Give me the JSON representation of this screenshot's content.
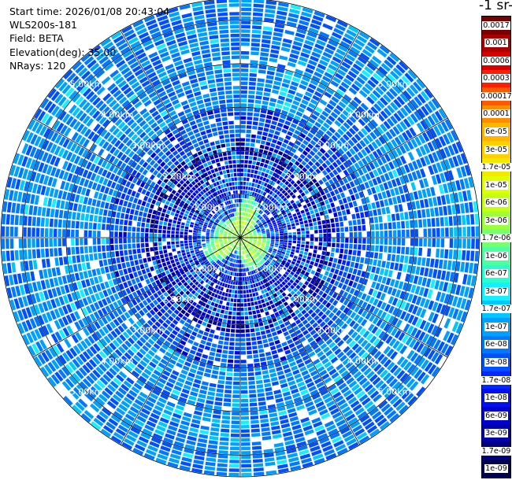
{
  "header": {
    "start_time": "Start time: 2026/01/08 20:43:04",
    "instrument": "WLS200s-181",
    "field": "Field: BETA",
    "elevation": "Elevation(deg): 35.00",
    "nrays": "NRays: 120"
  },
  "colorbar": {
    "title_fragment": "-1 sr-",
    "labels": [
      "0.0017",
      "0.001",
      "0.0006",
      "0.0003",
      "0.00017",
      "0.0001",
      "6e-05",
      "3e-05",
      "1.7e-05",
      "1e-05",
      "6e-06",
      "3e-06",
      "1.7e-06",
      "1e-06",
      "6e-07",
      "3e-07",
      "1.7e-07",
      "1e-07",
      "6e-08",
      "3e-08",
      "1.7e-08",
      "1e-08",
      "6e-09",
      "3e-09",
      "1.7e-09",
      "1e-09"
    ],
    "colors": [
      "#7a0000",
      "#a80000",
      "#d80000",
      "#ff1e00",
      "#ff5a00",
      "#ff8c00",
      "#ffb400",
      "#ffd000",
      "#f2e800",
      "#e0ff00",
      "#c4ff14",
      "#9cff3c",
      "#78ff70",
      "#4cffa0",
      "#28ffd0",
      "#14f0ff",
      "#00c8ff",
      "#00a0ff",
      "#0078ff",
      "#0050ff",
      "#0028ff",
      "#0010f0",
      "#0000d0",
      "#0000a8",
      "#00007c",
      "#000054"
    ]
  },
  "chart_data": {
    "type": "ppi",
    "title": "",
    "field": "BETA",
    "elevation_deg": 35.0,
    "n_rays": 120,
    "range_max_km": 5.5,
    "range_ring_labels": [
      "1.00km",
      "2.00km",
      "3.00km",
      "4.00km",
      "5.00km"
    ],
    "range_rings_km": [
      1,
      2,
      3,
      4,
      5
    ],
    "azimuth_grid_step_deg": 30,
    "label_directions_deg": [
      45,
      135,
      225,
      315
    ],
    "background_level": "1e-07",
    "core_region": {
      "radius_km": 0.6,
      "peak_level": "3e-06",
      "shell_level": "1e-06"
    },
    "near_field_level": "6e-09"
  }
}
